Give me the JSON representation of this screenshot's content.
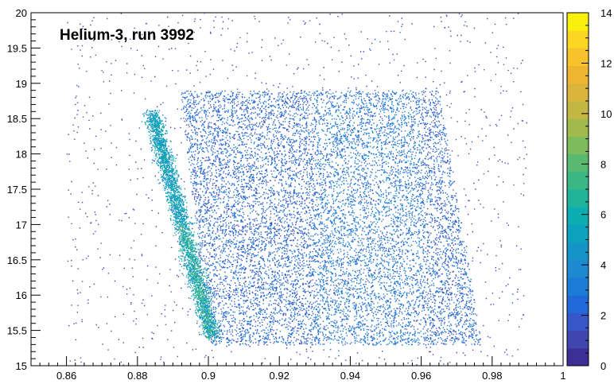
{
  "chart_data": {
    "type": "heatmap",
    "title": "Helium-3, run 3992",
    "xlabel": "",
    "ylabel": "",
    "xlim": [
      0.85,
      1.0
    ],
    "ylim": [
      15,
      20
    ],
    "x_ticks": [
      "0.86",
      "0.88",
      "0.9",
      "0.92",
      "0.94",
      "0.96",
      "0.98",
      "1"
    ],
    "y_ticks": [
      "15",
      "15.5",
      "16",
      "16.5",
      "17",
      "17.5",
      "18",
      "18.5",
      "19",
      "19.5",
      "20"
    ],
    "z_range": [
      0,
      14
    ],
    "z_ticks": [
      "0",
      "2",
      "4",
      "6",
      "8",
      "10",
      "12",
      "14"
    ],
    "palette": [
      "#3d2f95",
      "#3f46ad",
      "#3757c9",
      "#1f6ad8",
      "#1b7cd6",
      "#1d89d0",
      "#1595c7",
      "#0ca2be",
      "#0aadb0",
      "#1fb39a",
      "#3ab884",
      "#58ba70",
      "#7ebb5d",
      "#a2ba4c",
      "#c3b744",
      "#dbb43c",
      "#eeb630",
      "#f8c22a",
      "#fbd622",
      "#f9f00e"
    ],
    "regions": [
      {
        "name": "dense diagonal band",
        "from": [
          0.884,
          18.6
        ],
        "to": [
          0.901,
          15.4
        ],
        "peak_z": 8
      },
      {
        "name": "broad population",
        "x_range": [
          0.895,
          0.977
        ],
        "y_range": [
          15.3,
          18.9
        ],
        "typical_z": 2
      }
    ],
    "grid": false,
    "legend": "color-bar-right"
  }
}
